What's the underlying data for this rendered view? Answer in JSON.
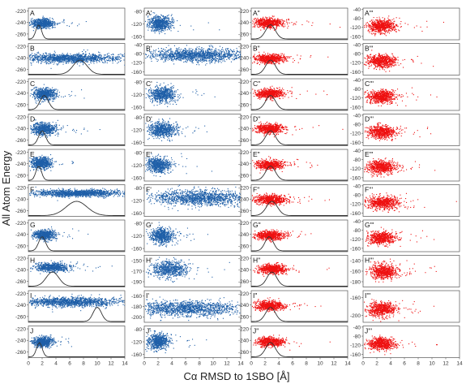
{
  "figure": {
    "ylabel": "All Atom Energy",
    "xlabel": "Cα RMSD to 1SBO [Å]",
    "x_ticks": [
      "0",
      "2",
      "4",
      "6",
      "8",
      "10",
      "12",
      "14"
    ],
    "colors": {
      "set1": "#1f5fa8",
      "set2": "#1f5fa8",
      "set3": "#ee1111",
      "set4": "#ee1111",
      "curve": "#333333",
      "axis": "#555555"
    }
  },
  "chart_data": [
    {
      "type": "scatter",
      "panel": "A",
      "xlim": [
        0,
        14
      ],
      "y_ticks": [
        "-220",
        "-240",
        "-260"
      ],
      "ylim": [
        -270,
        -215
      ],
      "cloud": {
        "cx": 2.0,
        "cy": -241,
        "sx": 0.8,
        "sy": 4
      },
      "curve": {
        "mu": 1.5,
        "sigma": 0.4
      }
    },
    {
      "type": "scatter",
      "panel": "B",
      "xlim": [
        0,
        14
      ],
      "y_ticks": [
        "-220",
        "-240",
        "-260"
      ],
      "ylim": [
        -270,
        -215
      ],
      "cloud": {
        "cx": 6.0,
        "cy": -240,
        "sx": 3.5,
        "sy": 4
      },
      "curve": {
        "mu": 7.5,
        "sigma": 1.0
      }
    },
    {
      "type": "scatter",
      "panel": "C",
      "xlim": [
        0,
        14
      ],
      "y_ticks": [
        "-220",
        "-240",
        "-260"
      ],
      "ylim": [
        -270,
        -215
      ],
      "cloud": {
        "cx": 2.3,
        "cy": -241,
        "sx": 0.8,
        "sy": 5
      },
      "curve": {
        "mu": 2.3,
        "sigma": 0.6
      }
    },
    {
      "type": "scatter",
      "panel": "D",
      "xlim": [
        0,
        14
      ],
      "y_ticks": [
        "-220",
        "-240",
        "-260"
      ],
      "ylim": [
        -270,
        -215
      ],
      "cloud": {
        "cx": 2.2,
        "cy": -240,
        "sx": 0.9,
        "sy": 5
      },
      "curve": {
        "mu": 2.0,
        "sigma": 0.5
      }
    },
    {
      "type": "scatter",
      "panel": "E",
      "xlim": [
        0,
        14
      ],
      "y_ticks": [
        "-220",
        "-240",
        "-260"
      ],
      "ylim": [
        -270,
        -215
      ],
      "cloud": {
        "cx": 1.8,
        "cy": -238,
        "sx": 0.7,
        "sy": 5
      },
      "curve": {
        "mu": 1.5,
        "sigma": 0.4
      }
    },
    {
      "type": "scatter",
      "panel": "F",
      "xlim": [
        0,
        14
      ],
      "y_ticks": [
        "-220",
        "-240",
        "-260"
      ],
      "ylim": [
        -270,
        -215
      ],
      "cloud": {
        "cx": 7.0,
        "cy": -229,
        "sx": 3.3,
        "sy": 3
      },
      "curve": {
        "mu": 7.0,
        "sigma": 1.5
      }
    },
    {
      "type": "scatter",
      "panel": "G",
      "xlim": [
        0,
        14
      ],
      "y_ticks": [
        "-220",
        "-240",
        "-260"
      ],
      "ylim": [
        -270,
        -215
      ],
      "cloud": {
        "cx": 2.2,
        "cy": -240,
        "sx": 0.7,
        "sy": 4
      },
      "curve": {
        "mu": 2.0,
        "sigma": 0.5
      }
    },
    {
      "type": "scatter",
      "panel": "H",
      "xlim": [
        0,
        14
      ],
      "y_ticks": [
        "-220",
        "-240",
        "-260"
      ],
      "ylim": [
        -270,
        -215
      ],
      "cloud": {
        "cx": 3.5,
        "cy": -235,
        "sx": 1.3,
        "sy": 4
      },
      "curve": {
        "mu": 3.5,
        "sigma": 0.9
      }
    },
    {
      "type": "scatter",
      "panel": "I",
      "xlim": [
        0,
        14
      ],
      "y_ticks": [
        "-220",
        "-240",
        "-260"
      ],
      "ylim": [
        -270,
        -215
      ],
      "cloud": {
        "cx": 6.0,
        "cy": -234,
        "sx": 3.8,
        "sy": 4
      },
      "curve": {
        "mu": 10.0,
        "sigma": 0.6
      }
    },
    {
      "type": "scatter",
      "panel": "J",
      "xlim": [
        0,
        14
      ],
      "y_ticks": [
        "-220",
        "-240",
        "-260"
      ],
      "ylim": [
        -270,
        -215
      ],
      "cloud": {
        "cx": 2.0,
        "cy": -242,
        "sx": 0.7,
        "sy": 4
      },
      "curve": {
        "mu": 1.6,
        "sigma": 0.4
      }
    },
    {
      "type": "scatter",
      "panel": "A'",
      "xlim": [
        0,
        14
      ],
      "y_ticks": [
        "-80",
        "-120",
        "-160"
      ],
      "ylim": [
        -170,
        -70
      ],
      "cloud": {
        "cx": 2.2,
        "cy": -118,
        "sx": 0.8,
        "sy": 12
      }
    },
    {
      "type": "scatter",
      "panel": "B'",
      "xlim": [
        0,
        14
      ],
      "y_ticks": [
        "-40",
        "-80",
        "-120",
        "-160"
      ],
      "ylim": [
        -175,
        -35
      ],
      "cloud": {
        "cx": 7.5,
        "cy": -85,
        "sx": 3.5,
        "sy": 14
      }
    },
    {
      "type": "scatter",
      "panel": "C'",
      "xlim": [
        0,
        14
      ],
      "y_ticks": [
        "-80",
        "-120",
        "-160"
      ],
      "ylim": [
        -170,
        -70
      ],
      "cloud": {
        "cx": 2.5,
        "cy": -118,
        "sx": 0.9,
        "sy": 12
      }
    },
    {
      "type": "scatter",
      "panel": "D'",
      "xlim": [
        0,
        14
      ],
      "y_ticks": [
        "-80",
        "-120",
        "-160"
      ],
      "ylim": [
        -170,
        -70
      ],
      "cloud": {
        "cx": 2.5,
        "cy": -118,
        "sx": 1.0,
        "sy": 12
      }
    },
    {
      "type": "scatter",
      "panel": "E'",
      "xlim": [
        0,
        14
      ],
      "y_ticks": [
        "-80",
        "-120",
        "-160"
      ],
      "ylim": [
        -170,
        -70
      ],
      "cloud": {
        "cx": 2.0,
        "cy": -118,
        "sx": 0.8,
        "sy": 12
      }
    },
    {
      "type": "scatter",
      "panel": "F'",
      "xlim": [
        0,
        14
      ],
      "y_ticks": [
        "-80",
        "-120",
        "-160"
      ],
      "ylim": [
        -170,
        -70
      ],
      "cloud": {
        "cx": 8.0,
        "cy": -110,
        "sx": 3.5,
        "sy": 12
      }
    },
    {
      "type": "scatter",
      "panel": "G'",
      "xlim": [
        0,
        14
      ],
      "y_ticks": [
        "-80",
        "-120",
        "-160"
      ],
      "ylim": [
        -170,
        -70
      ],
      "cloud": {
        "cx": 2.5,
        "cy": -118,
        "sx": 0.8,
        "sy": 12
      }
    },
    {
      "type": "scatter",
      "panel": "H'",
      "xlim": [
        0,
        14
      ],
      "y_ticks": [
        "-150",
        "-170",
        "-190"
      ],
      "ylim": [
        -200,
        -140
      ],
      "cloud": {
        "cx": 3.5,
        "cy": -165,
        "sx": 1.3,
        "sy": 8
      }
    },
    {
      "type": "scatter",
      "panel": "I'",
      "xlim": [
        0,
        14
      ],
      "y_ticks": [
        "-160",
        "-180",
        "-200"
      ],
      "ylim": [
        -210,
        -150
      ],
      "cloud": {
        "cx": 6.0,
        "cy": -183,
        "sx": 3.8,
        "sy": 7
      }
    },
    {
      "type": "scatter",
      "panel": "J'",
      "xlim": [
        0,
        14
      ],
      "y_ticks": [
        "-80",
        "-120",
        "-160"
      ],
      "ylim": [
        -170,
        -70
      ],
      "cloud": {
        "cx": 2.0,
        "cy": -118,
        "sx": 0.8,
        "sy": 12
      }
    },
    {
      "type": "scatter",
      "panel": "A\"",
      "xlim": [
        0,
        14
      ],
      "y_ticks": [
        "-220",
        "-240",
        "-260"
      ],
      "ylim": [
        -270,
        -215
      ],
      "cloud": {
        "cx": 2.4,
        "cy": -240,
        "sx": 1.0,
        "sy": 4
      },
      "curve": {
        "mu": 2.8,
        "sigma": 0.7
      }
    },
    {
      "type": "scatter",
      "panel": "B\"",
      "xlim": [
        0,
        14
      ],
      "y_ticks": [
        "-220",
        "-240",
        "-260"
      ],
      "ylim": [
        -270,
        -215
      ],
      "cloud": {
        "cx": 2.6,
        "cy": -241,
        "sx": 1.1,
        "sy": 4
      },
      "curve": {
        "mu": 2.8,
        "sigma": 0.7
      }
    },
    {
      "type": "scatter",
      "panel": "C\"",
      "xlim": [
        0,
        14
      ],
      "y_ticks": [
        "-220",
        "-240",
        "-260"
      ],
      "ylim": [
        -270,
        -215
      ],
      "cloud": {
        "cx": 2.6,
        "cy": -240,
        "sx": 1.0,
        "sy": 4
      },
      "curve": {
        "mu": 2.8,
        "sigma": 0.7
      }
    },
    {
      "type": "scatter",
      "panel": "D\"",
      "xlim": [
        0,
        14
      ],
      "y_ticks": [
        "-220",
        "-240",
        "-260"
      ],
      "ylim": [
        -270,
        -215
      ],
      "cloud": {
        "cx": 2.6,
        "cy": -240,
        "sx": 1.0,
        "sy": 4
      },
      "curve": {
        "mu": 2.8,
        "sigma": 0.7
      }
    },
    {
      "type": "scatter",
      "panel": "E\"",
      "xlim": [
        0,
        14
      ],
      "y_ticks": [
        "-220",
        "-240",
        "-260"
      ],
      "ylim": [
        -270,
        -215
      ],
      "cloud": {
        "cx": 2.6,
        "cy": -241,
        "sx": 1.0,
        "sy": 4
      },
      "curve": {
        "mu": 2.8,
        "sigma": 0.7
      }
    },
    {
      "type": "scatter",
      "panel": "F\"",
      "xlim": [
        0,
        14
      ],
      "y_ticks": [
        "-220",
        "-240",
        "-260"
      ],
      "ylim": [
        -270,
        -215
      ],
      "cloud": {
        "cx": 2.8,
        "cy": -240,
        "sx": 1.2,
        "sy": 4
      },
      "curve": {
        "mu": 3.0,
        "sigma": 0.8
      }
    },
    {
      "type": "scatter",
      "panel": "G\"",
      "xlim": [
        0,
        14
      ],
      "y_ticks": [
        "-220",
        "-240",
        "-260"
      ],
      "ylim": [
        -270,
        -215
      ],
      "cloud": {
        "cx": 2.6,
        "cy": -241,
        "sx": 1.0,
        "sy": 4
      },
      "curve": {
        "mu": 2.6,
        "sigma": 0.6
      }
    },
    {
      "type": "scatter",
      "panel": "H\"",
      "xlim": [
        0,
        14
      ],
      "y_ticks": [
        "-220",
        "-240",
        "-260"
      ],
      "ylim": [
        -270,
        -215
      ],
      "cloud": {
        "cx": 3.0,
        "cy": -238,
        "sx": 1.0,
        "sy": 4
      },
      "curve": {
        "mu": 3.0,
        "sigma": 0.7
      }
    },
    {
      "type": "scatter",
      "panel": "I\"",
      "xlim": [
        0,
        14
      ],
      "y_ticks": [
        "-220",
        "-240",
        "-260"
      ],
      "ylim": [
        -270,
        -215
      ],
      "cloud": {
        "cx": 2.6,
        "cy": -240,
        "sx": 1.0,
        "sy": 4
      },
      "curve": {
        "mu": 2.8,
        "sigma": 0.7
      }
    },
    {
      "type": "scatter",
      "panel": "J\"",
      "xlim": [
        0,
        14
      ],
      "y_ticks": [
        "-220",
        "-240",
        "-260"
      ],
      "ylim": [
        -270,
        -215
      ],
      "cloud": {
        "cx": 2.6,
        "cy": -242,
        "sx": 1.0,
        "sy": 4
      },
      "curve": {
        "mu": 2.8,
        "sigma": 0.7
      }
    },
    {
      "type": "scatter",
      "panel": "A'''",
      "xlim": [
        0,
        14
      ],
      "y_ticks": [
        "-40",
        "-80",
        "-120",
        "-160"
      ],
      "ylim": [
        -175,
        -35
      ],
      "cloud": {
        "cx": 2.6,
        "cy": -112,
        "sx": 1.0,
        "sy": 14
      }
    },
    {
      "type": "scatter",
      "panel": "B'''",
      "xlim": [
        0,
        14
      ],
      "y_ticks": [
        "-40",
        "-80",
        "-120",
        "-160"
      ],
      "ylim": [
        -175,
        -35
      ],
      "cloud": {
        "cx": 2.6,
        "cy": -112,
        "sx": 1.0,
        "sy": 14
      }
    },
    {
      "type": "scatter",
      "panel": "C'''",
      "xlim": [
        0,
        14
      ],
      "y_ticks": [
        "-40",
        "-80",
        "-120",
        "-160"
      ],
      "ylim": [
        -175,
        -35
      ],
      "cloud": {
        "cx": 2.6,
        "cy": -112,
        "sx": 1.0,
        "sy": 14
      }
    },
    {
      "type": "scatter",
      "panel": "D'''",
      "xlim": [
        0,
        14
      ],
      "y_ticks": [
        "-40",
        "-80",
        "-120",
        "-160"
      ],
      "ylim": [
        -175,
        -35
      ],
      "cloud": {
        "cx": 2.6,
        "cy": -112,
        "sx": 1.0,
        "sy": 14
      }
    },
    {
      "type": "scatter",
      "panel": "E'''",
      "xlim": [
        0,
        14
      ],
      "y_ticks": [
        "-40",
        "-80",
        "-120",
        "-160"
      ],
      "ylim": [
        -175,
        -35
      ],
      "cloud": {
        "cx": 2.6,
        "cy": -112,
        "sx": 1.0,
        "sy": 14
      }
    },
    {
      "type": "scatter",
      "panel": "F'''",
      "xlim": [
        0,
        14
      ],
      "y_ticks": [
        "-40",
        "-80",
        "-120",
        "-160"
      ],
      "ylim": [
        -175,
        -35
      ],
      "cloud": {
        "cx": 2.8,
        "cy": -112,
        "sx": 1.2,
        "sy": 14
      }
    },
    {
      "type": "scatter",
      "panel": "G'''",
      "xlim": [
        0,
        14
      ],
      "y_ticks": [
        "-40",
        "-80",
        "-120",
        "-160"
      ],
      "ylim": [
        -175,
        -35
      ],
      "cloud": {
        "cx": 2.6,
        "cy": -112,
        "sx": 1.0,
        "sy": 14
      }
    },
    {
      "type": "scatter",
      "panel": "H'''",
      "xlim": [
        0,
        14
      ],
      "y_ticks": [
        "-140",
        "-160",
        "-180"
      ],
      "ylim": [
        -190,
        -130
      ],
      "cloud": {
        "cx": 3.0,
        "cy": -160,
        "sx": 1.0,
        "sy": 7
      }
    },
    {
      "type": "scatter",
      "panel": "I'''",
      "xlim": [
        0,
        14
      ],
      "y_ticks": [
        "-160",
        "-200"
      ],
      "ylim": [
        -215,
        -145
      ],
      "cloud": {
        "cx": 2.6,
        "cy": -185,
        "sx": 1.0,
        "sy": 8
      }
    },
    {
      "type": "scatter",
      "panel": "J'''",
      "xlim": [
        0,
        14
      ],
      "y_ticks": [
        "-40",
        "-80",
        "-120",
        "-160"
      ],
      "ylim": [
        -175,
        -35
      ],
      "cloud": {
        "cx": 2.6,
        "cy": -112,
        "sx": 1.0,
        "sy": 14
      }
    }
  ]
}
